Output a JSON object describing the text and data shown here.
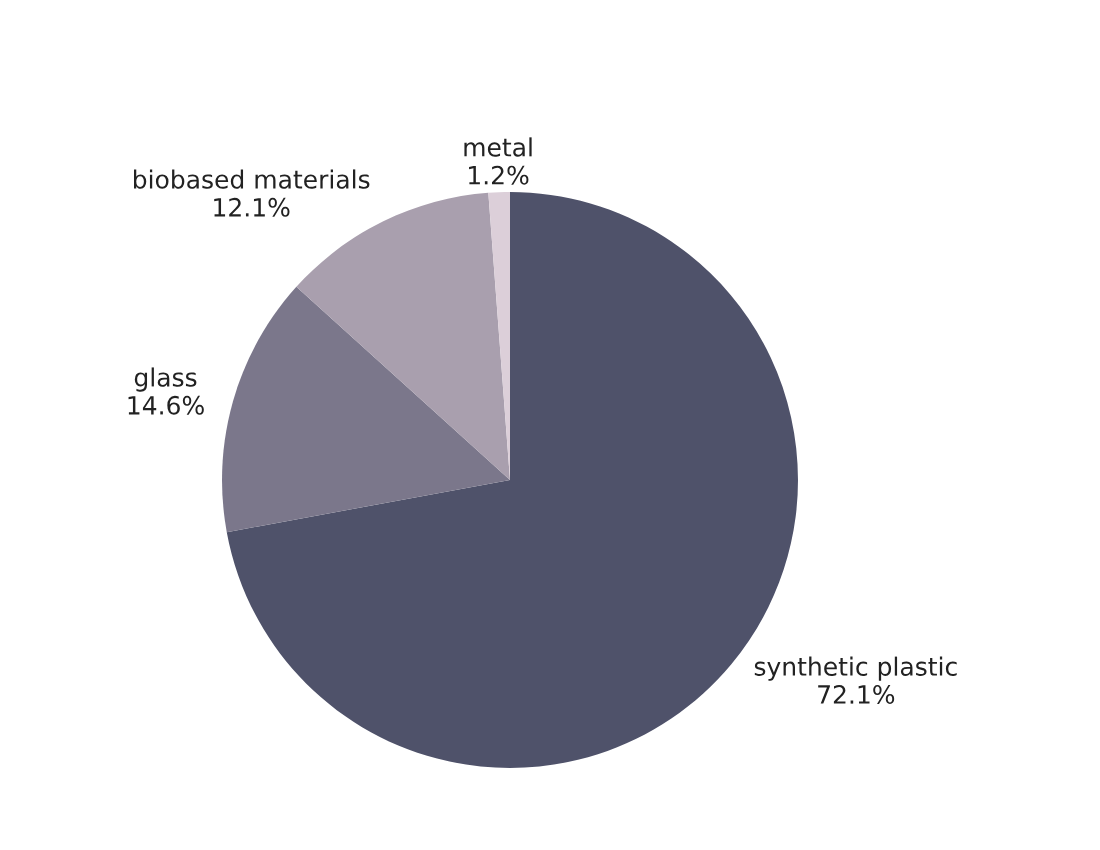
{
  "chart_data": {
    "type": "pie",
    "categories": [
      "synthetic plastic",
      "glass",
      "biobased materials",
      "metal"
    ],
    "values": [
      72.1,
      14.6,
      12.1,
      1.2
    ],
    "value_labels": [
      "72.1%",
      "14.6%",
      "12.1%",
      "1.2%"
    ],
    "colors": [
      "#4f526a",
      "#7b778b",
      "#a99fae",
      "#dccfd9"
    ]
  }
}
